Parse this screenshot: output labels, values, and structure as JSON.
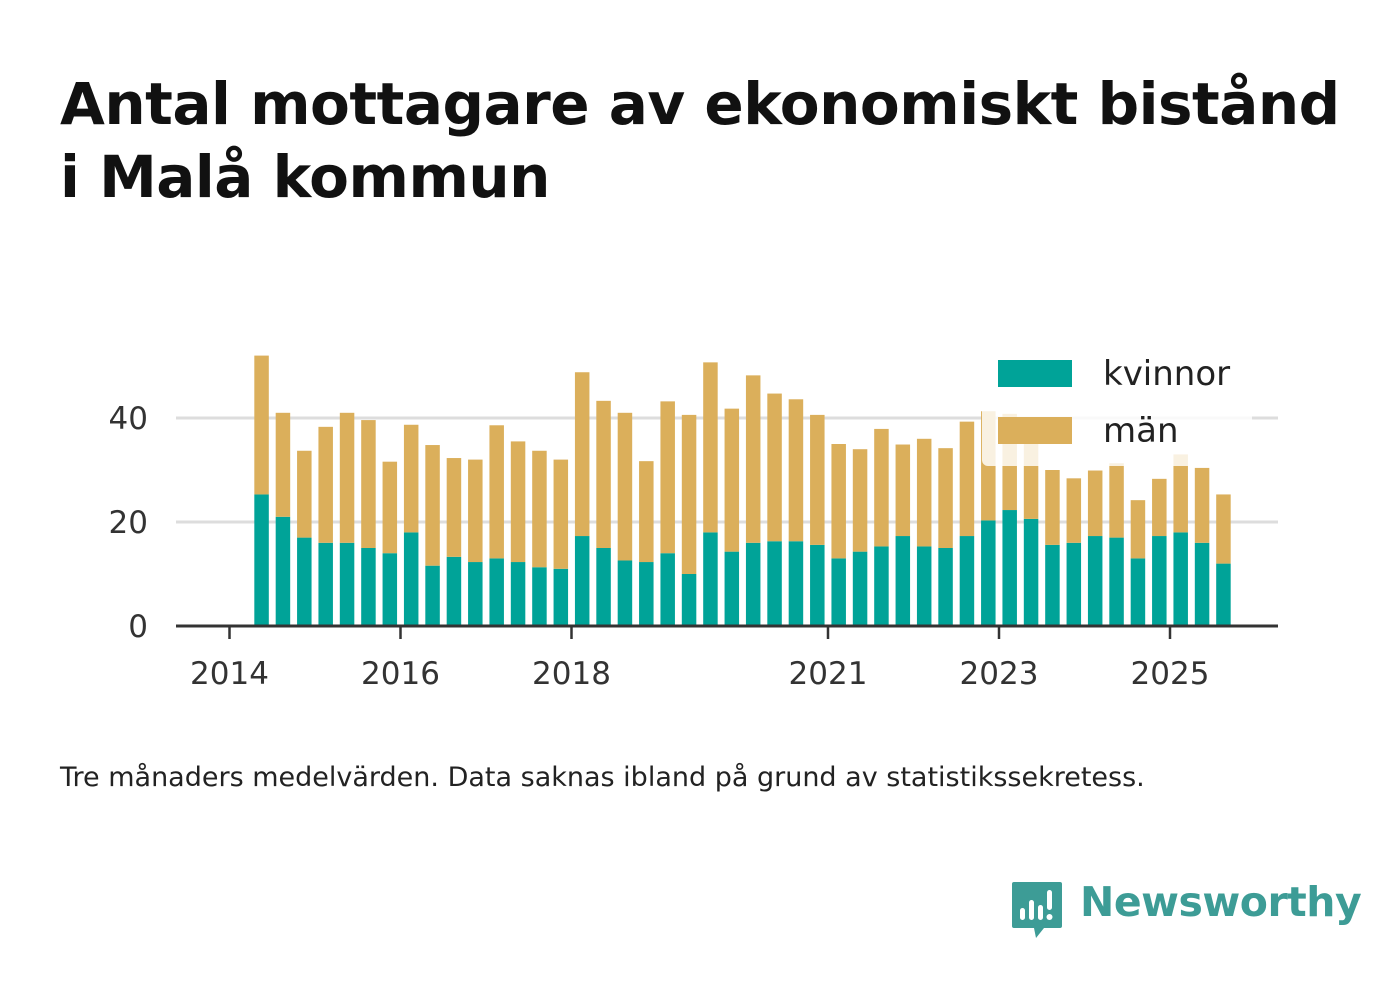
{
  "title": "Antal mottagare av ekonomiskt bistånd i Malå kommun",
  "note": "Tre månaders medelvärden. Data saknas ibland på grund av statistikssekretess.",
  "brand": {
    "name": "Newsworthy",
    "icon": "newsworthy-logo-icon",
    "color": "#3d9c96"
  },
  "chart_data": {
    "type": "bar",
    "stacked": true,
    "title": "Antal mottagare av ekonomiskt bistånd i Malå kommun",
    "xlabel": "",
    "ylabel": "",
    "ylim": [
      0,
      55
    ],
    "yticks": [
      0,
      20,
      40
    ],
    "xticks": [
      "2014",
      "2016",
      "2018",
      "2021",
      "2023",
      "2025"
    ],
    "grid": true,
    "legend_position": "top-right",
    "x": [
      "2014-05",
      "2014-08",
      "2014-11",
      "2015-02",
      "2015-05",
      "2015-08",
      "2015-11",
      "2016-02",
      "2016-05",
      "2016-08",
      "2016-11",
      "2017-02",
      "2017-05",
      "2017-08",
      "2017-11",
      "2018-02",
      "2018-05",
      "2018-08",
      "2018-11",
      "2019-02",
      "2019-05",
      "2019-08",
      "2019-11",
      "2020-02",
      "2020-05",
      "2020-08",
      "2020-11",
      "2021-02",
      "2021-05",
      "2021-08",
      "2021-11",
      "2022-02",
      "2022-05",
      "2022-08",
      "2022-11",
      "2023-02",
      "2023-05",
      "2023-08",
      "2023-11",
      "2024-02",
      "2024-05",
      "2024-08",
      "2024-11",
      "2025-02",
      "2025-05",
      "2025-08"
    ],
    "series": [
      {
        "name": "kvinnor",
        "color": "#00a398",
        "values": [
          25.3,
          21,
          17,
          16,
          16,
          15,
          14,
          18,
          11.6,
          13.3,
          12.3,
          13,
          12.3,
          11.3,
          11,
          17.3,
          15,
          12.6,
          12.3,
          14,
          10,
          18,
          14.3,
          16,
          16.3,
          16.3,
          15.6,
          13,
          14.3,
          15.3,
          17.3,
          15.3,
          15,
          17.3,
          20.3,
          22.3,
          20.6,
          15.6,
          16,
          17.3,
          17,
          13,
          17.3,
          18,
          16,
          12
        ]
      },
      {
        "name": "män",
        "color": "#dbaf5b",
        "values": [
          26.7,
          20,
          16.7,
          22.3,
          25,
          24.6,
          17.6,
          20.7,
          23.2,
          19,
          19.7,
          25.6,
          23.2,
          22.4,
          21,
          31.5,
          28.3,
          28.4,
          19.4,
          29.2,
          30.6,
          32.7,
          27.5,
          32.2,
          28.4,
          27.3,
          25,
          22,
          19.7,
          22.6,
          17.6,
          20.7,
          19.2,
          22,
          21,
          18.5,
          19.5,
          14.4,
          12.4,
          12.6,
          14.3,
          11.2,
          11,
          15,
          14.4,
          13.3
        ]
      }
    ]
  }
}
